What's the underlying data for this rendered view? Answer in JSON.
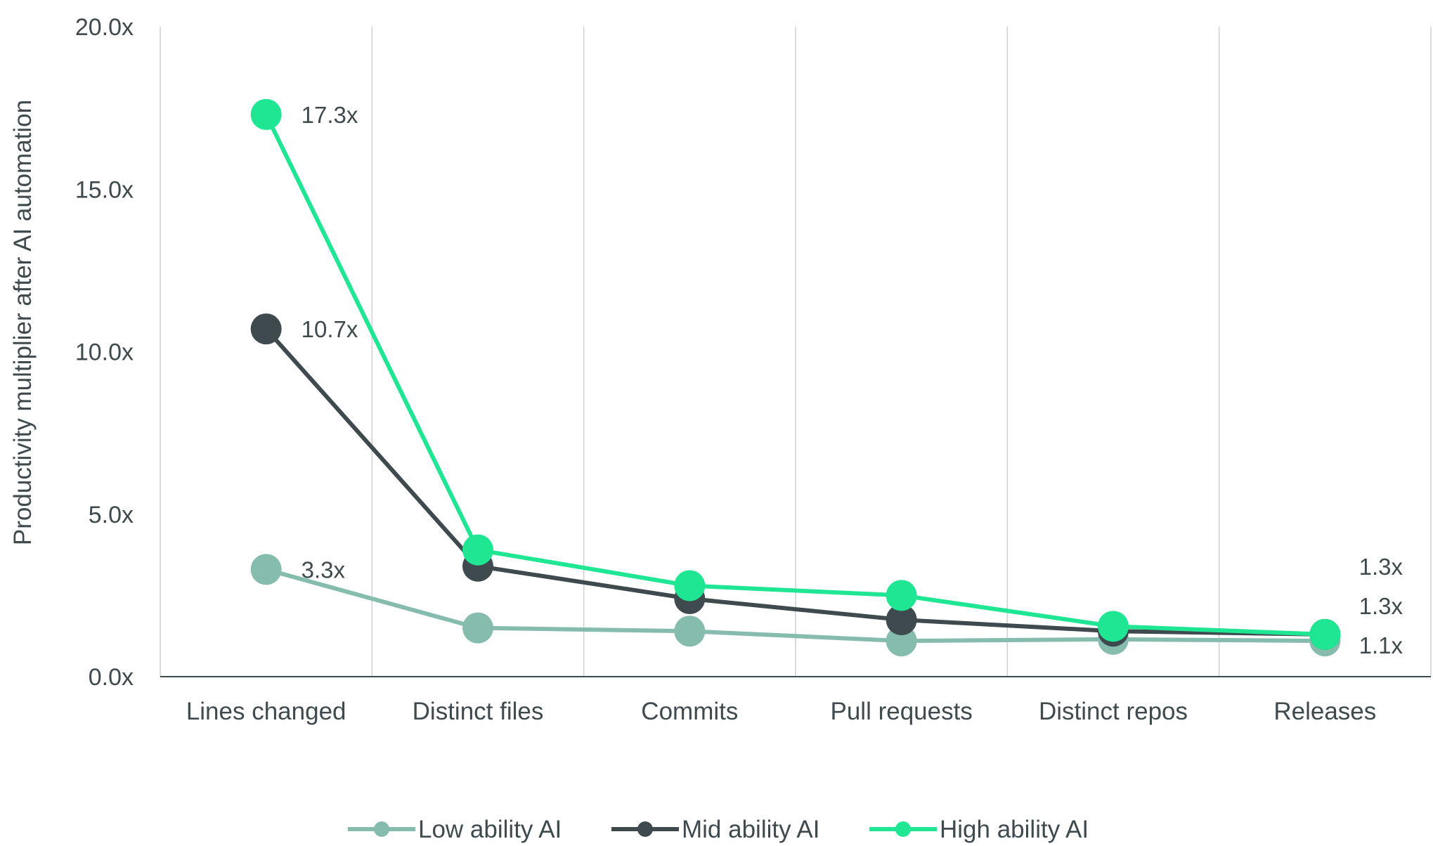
{
  "chart_data": {
    "type": "line",
    "title": "",
    "xlabel": "",
    "ylabel": "Productivity multiplier after AI automation",
    "ylim": [
      0,
      20
    ],
    "y_ticks": [
      "0.0x",
      "5.0x",
      "10.0x",
      "15.0x",
      "20.0x"
    ],
    "y_tick_values": [
      0,
      5,
      10,
      15,
      20
    ],
    "categories": [
      "Lines changed",
      "Distinct files",
      "Commits",
      "Pull requests",
      "Distinct repos",
      "Releases"
    ],
    "grid": "vertical",
    "legend_position": "bottom",
    "series": [
      {
        "name": "Low ability AI",
        "color": "#86bcae",
        "values": [
          3.3,
          1.5,
          1.4,
          1.1,
          1.15,
          1.1
        ]
      },
      {
        "name": "Mid ability AI",
        "color": "#3f4a4f",
        "values": [
          10.7,
          3.4,
          2.4,
          1.75,
          1.4,
          1.3
        ]
      },
      {
        "name": "High ability AI",
        "color": "#1ee693",
        "values": [
          17.3,
          3.9,
          2.8,
          2.5,
          1.55,
          1.3
        ]
      }
    ],
    "annotations": [
      {
        "series": 2,
        "index": 0,
        "text": "17.3x"
      },
      {
        "series": 1,
        "index": 0,
        "text": "10.7x"
      },
      {
        "series": 0,
        "index": 0,
        "text": "3.3x"
      },
      {
        "series": 2,
        "index": 5,
        "text": "1.3x"
      },
      {
        "series": 1,
        "index": 5,
        "text": "1.3x"
      },
      {
        "series": 0,
        "index": 5,
        "text": "1.1x"
      }
    ]
  }
}
